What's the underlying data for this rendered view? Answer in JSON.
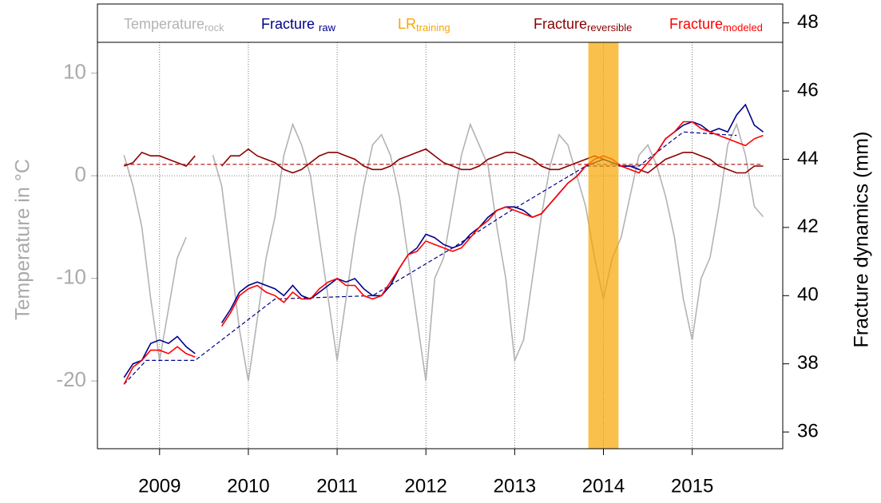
{
  "chart_data": {
    "type": "line",
    "y_label": "Temperature in °C",
    "y2_label": "Fracture dynamics (mm)",
    "xlim": [
      2008.3,
      2016.02
    ],
    "xticks": [
      2009,
      2010,
      2011,
      2012,
      2013,
      2014,
      2015
    ],
    "ylim": [
      -26.6,
      13.0
    ],
    "yticks": [
      -20,
      -10,
      0,
      10
    ],
    "y2lim": [
      35.51,
      47.43
    ],
    "y2ticks": [
      36,
      38,
      40,
      42,
      44,
      46,
      48
    ],
    "grid": true,
    "x": [
      2008.6,
      2008.7,
      2008.8,
      2008.9,
      2009.0,
      2009.1,
      2009.2,
      2009.3,
      2009.4,
      2009.5,
      2009.6,
      2009.7,
      2009.8,
      2009.9,
      2010.0,
      2010.1,
      2010.2,
      2010.3,
      2010.4,
      2010.5,
      2010.6,
      2010.7,
      2010.8,
      2010.9,
      2011.0,
      2011.1,
      2011.2,
      2011.3,
      2011.4,
      2011.5,
      2011.6,
      2011.7,
      2011.8,
      2011.9,
      2012.0,
      2012.1,
      2012.2,
      2012.3,
      2012.4,
      2012.5,
      2012.6,
      2012.7,
      2012.8,
      2012.9,
      2013.0,
      2013.1,
      2013.2,
      2013.3,
      2013.4,
      2013.5,
      2013.6,
      2013.7,
      2013.8,
      2013.9,
      2014.0,
      2014.1,
      2014.2,
      2014.3,
      2014.4,
      2014.5,
      2014.6,
      2014.7,
      2014.8,
      2014.9,
      2015.0,
      2015.1,
      2015.2,
      2015.3,
      2015.4,
      2015.5,
      2015.6,
      2015.7,
      2015.8
    ],
    "series": [
      {
        "name": "Temperature",
        "name_sub": "rock",
        "color": "#b3b3b3",
        "axis": "y",
        "values": [
          2,
          -1,
          -5,
          -12,
          -18,
          -13,
          -8,
          -6,
          null,
          null,
          2,
          -1,
          -8,
          -15,
          -20,
          -14,
          -8,
          -4,
          2,
          5,
          3,
          0,
          -6,
          -12,
          -18,
          -12,
          -6,
          -1,
          3,
          4,
          2,
          -2,
          -8,
          -14,
          -20,
          -10,
          -8,
          -3,
          2,
          5,
          3,
          1,
          -5,
          -10,
          -18,
          -16,
          -10,
          -4,
          1,
          4,
          3,
          0,
          -3,
          -8,
          -12,
          -8,
          -6,
          -2,
          2,
          3,
          1,
          -2,
          -6,
          -12,
          -16,
          -10,
          -8,
          -3,
          3,
          5,
          2,
          -3,
          -4
        ]
      },
      {
        "name": "Fracture",
        "name_sub": "reversible",
        "color": "#8b0000",
        "axis": "y2",
        "values": [
          43.8,
          43.9,
          44.2,
          44.1,
          44.1,
          44.0,
          43.9,
          43.8,
          44.1,
          null,
          null,
          43.8,
          44.1,
          44.1,
          44.3,
          44.1,
          44.0,
          43.9,
          43.7,
          43.6,
          43.7,
          43.9,
          44.1,
          44.2,
          44.2,
          44.1,
          44.0,
          43.8,
          43.7,
          43.7,
          43.8,
          44.0,
          44.1,
          44.2,
          44.3,
          44.1,
          43.9,
          43.8,
          43.7,
          43.7,
          43.8,
          44.0,
          44.1,
          44.2,
          44.2,
          44.1,
          44.0,
          43.8,
          43.7,
          43.7,
          43.8,
          43.9,
          44.0,
          44.1,
          44.0,
          43.9,
          43.8,
          43.8,
          43.7,
          43.6,
          43.8,
          44.0,
          44.1,
          44.2,
          44.2,
          44.1,
          44.0,
          43.8,
          43.7,
          43.6,
          43.6,
          43.8,
          43.8
        ]
      },
      {
        "color": "#b22222",
        "axis": "y2",
        "dashed": true,
        "x": [
          2008.6,
          2015.8
        ],
        "values": [
          43.85,
          43.85
        ]
      },
      {
        "color": "#00008b",
        "axis": "y2",
        "dashed": true,
        "x": [
          2008.6,
          2008.85,
          2009.4,
          2010.3,
          2011.4,
          2012.3,
          2012.9,
          2013.8,
          2014.4,
          2014.9,
          2015.5
        ],
        "values": [
          37.4,
          38.1,
          38.1,
          39.9,
          40.0,
          41.4,
          42.4,
          43.8,
          43.8,
          44.8,
          44.7
        ]
      },
      {
        "name": "Fracture",
        "name_sub": "raw",
        "color": "#00008b",
        "axis": "y2",
        "values": [
          37.6,
          38.0,
          38.1,
          38.6,
          38.7,
          38.6,
          38.8,
          38.5,
          38.3,
          null,
          null,
          39.2,
          39.6,
          40.1,
          40.3,
          40.4,
          40.3,
          40.2,
          40.0,
          40.3,
          40.0,
          39.9,
          40.1,
          40.3,
          40.5,
          40.4,
          40.5,
          40.2,
          40.0,
          40.0,
          40.3,
          40.8,
          41.2,
          41.4,
          41.8,
          41.7,
          41.5,
          41.4,
          41.5,
          41.8,
          42.0,
          42.3,
          42.5,
          42.6,
          42.6,
          42.5,
          42.3,
          42.4,
          42.7,
          43.0,
          43.3,
          43.5,
          43.8,
          43.9,
          44.0,
          43.9,
          43.8,
          43.8,
          43.7,
          null,
          44.2,
          44.6,
          44.8,
          45.0,
          45.1,
          45.0,
          44.8,
          44.9,
          44.8,
          45.3,
          45.6,
          45.0,
          44.8
        ]
      },
      {
        "name": "Fracture",
        "name_sub": "modeled",
        "color": "#ff0000",
        "axis": "y2",
        "values": [
          37.4,
          37.9,
          38.1,
          38.4,
          38.4,
          38.3,
          38.5,
          38.3,
          38.2,
          null,
          null,
          39.1,
          39.5,
          40.0,
          40.2,
          40.3,
          40.1,
          40.0,
          39.8,
          40.1,
          39.9,
          39.9,
          40.2,
          40.4,
          40.5,
          40.3,
          40.3,
          40.0,
          39.9,
          40.0,
          40.4,
          40.8,
          41.2,
          41.3,
          41.6,
          41.5,
          41.4,
          41.3,
          41.4,
          41.7,
          42.0,
          42.2,
          42.5,
          42.6,
          42.5,
          42.4,
          42.3,
          42.4,
          42.7,
          43.0,
          43.3,
          43.5,
          43.8,
          44.0,
          44.1,
          44.0,
          43.8,
          43.7,
          43.6,
          43.9,
          44.2,
          44.6,
          44.8,
          45.1,
          45.1,
          44.9,
          44.8,
          44.7,
          44.6,
          44.5,
          44.4,
          44.6,
          44.7
        ]
      }
    ],
    "band": {
      "name": "LR",
      "name_sub": "training",
      "color": "#f7a600",
      "x": [
        2013.83,
        2014.17
      ]
    }
  }
}
